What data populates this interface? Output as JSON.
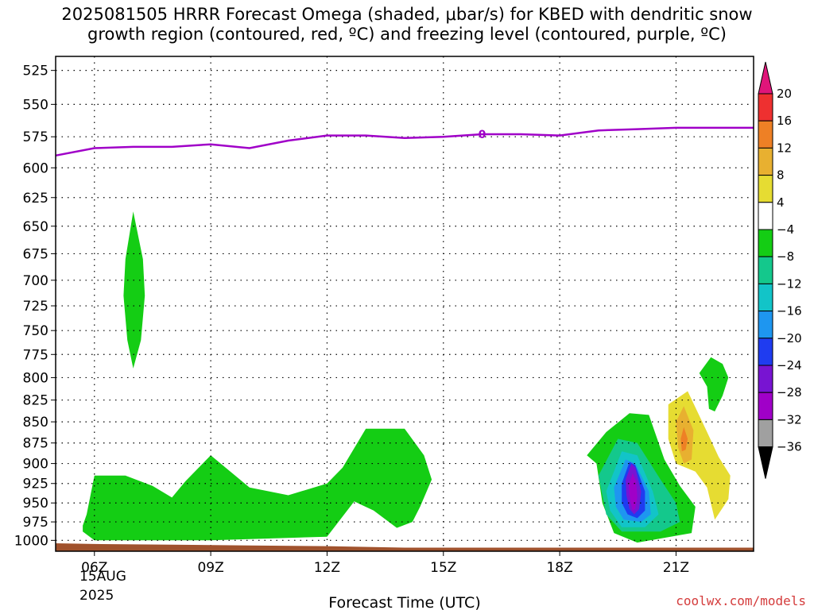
{
  "title_line1": "2025081505 HRRR Forecast Omega (shaded, μbar/s) for KBED with dendritic snow",
  "title_line2": "growth region (contoured, red, ºC) and freezing level (contoured, purple, ºC)",
  "credit": "coolwx.com/models",
  "chart_data": {
    "type": "time-height contour",
    "xlabel": "Forecast Time (UTC)",
    "x_ticks": [
      "06Z",
      "09Z",
      "12Z",
      "15Z",
      "18Z",
      "21Z"
    ],
    "x_tick_hours": [
      6,
      9,
      12,
      15,
      18,
      21
    ],
    "x_date_label": [
      "15AUG",
      "2025"
    ],
    "xlim": [
      5.0,
      23.0
    ],
    "ylabel": "",
    "y_ticks": [
      525,
      550,
      575,
      600,
      625,
      650,
      675,
      700,
      725,
      750,
      775,
      800,
      825,
      850,
      875,
      900,
      925,
      950,
      975,
      1000
    ],
    "y_ticks_label": [
      "525",
      "550",
      "575",
      "600",
      "625",
      "650",
      "675",
      "700",
      "725",
      "750",
      "775",
      "800",
      "825",
      "850",
      "875",
      "900",
      "925",
      "950",
      "975",
      "1000"
    ],
    "ylim": [
      1015,
      515
    ],
    "grid": true,
    "colorbar": {
      "labels": [
        "20",
        "16",
        "12",
        "8",
        "4",
        "−4",
        "−8",
        "−12",
        "−16",
        "−20",
        "−24",
        "−28",
        "−32",
        "−36"
      ],
      "label_values": [
        20,
        16,
        12,
        8,
        4,
        -4,
        -8,
        -12,
        -16,
        -20,
        -24,
        -28,
        -32,
        -36
      ],
      "bands": [
        {
          "range": "above 20",
          "color": "#e0157a"
        },
        {
          "range": "16 to 20",
          "color": "#ee3030"
        },
        {
          "range": "12 to 16",
          "color": "#ee8025"
        },
        {
          "range": "8 to 12",
          "color": "#e8b030"
        },
        {
          "range": "4 to 8",
          "color": "#e6dc32"
        },
        {
          "range": "-4 to 4",
          "color": "#ffffff"
        },
        {
          "range": "-8 to -4",
          "color": "#14cd14"
        },
        {
          "range": "-12 to -8",
          "color": "#14c88c"
        },
        {
          "range": "-16 to -12",
          "color": "#12c4c8"
        },
        {
          "range": "-20 to -16",
          "color": "#1e96f0"
        },
        {
          "range": "-24 to -20",
          "color": "#1f3cf0"
        },
        {
          "range": "-28 to -24",
          "color": "#7814d2"
        },
        {
          "range": "-32 to -28",
          "color": "#a000c8"
        },
        {
          "range": "-36 to -32",
          "color": "#a0a0a0"
        },
        {
          "range": "below -36",
          "color": "#000000"
        }
      ]
    },
    "freezing_level": {
      "color": "#a000c8",
      "label": "0",
      "points": [
        [
          5.0,
          590
        ],
        [
          6.0,
          584
        ],
        [
          7.0,
          583
        ],
        [
          8.0,
          583
        ],
        [
          9.0,
          581
        ],
        [
          10.0,
          584
        ],
        [
          11.0,
          578
        ],
        [
          12.0,
          574
        ],
        [
          13.0,
          574
        ],
        [
          14.0,
          576
        ],
        [
          15.0,
          575
        ],
        [
          16.0,
          573
        ],
        [
          17.0,
          573
        ],
        [
          18.0,
          574
        ],
        [
          19.0,
          570
        ],
        [
          20.0,
          569
        ],
        [
          21.0,
          568
        ],
        [
          22.0,
          568
        ],
        [
          23.0,
          568
        ]
      ]
    },
    "surface": {
      "color": "#a0522d",
      "points": [
        [
          5.0,
          1004
        ],
        [
          6.0,
          1005
        ],
        [
          8.0,
          1006
        ],
        [
          10.0,
          1007
        ],
        [
          12.0,
          1008
        ],
        [
          14.0,
          1010
        ],
        [
          16.0,
          1010
        ],
        [
          18.0,
          1010
        ],
        [
          20.0,
          1010
        ],
        [
          22.0,
          1010
        ],
        [
          23.0,
          1010
        ]
      ]
    },
    "omega_regions": [
      {
        "name": "ascent-0700z",
        "color": "#14cd14",
        "points": [
          [
            7.0,
            637
          ],
          [
            7.25,
            680
          ],
          [
            7.3,
            715
          ],
          [
            7.2,
            760
          ],
          [
            7.0,
            790
          ],
          [
            6.85,
            760
          ],
          [
            6.75,
            715
          ],
          [
            6.8,
            680
          ]
        ]
      },
      {
        "name": "ascent-low-morning",
        "color": "#14cd14",
        "points": [
          [
            5.7,
            980
          ],
          [
            5.8,
            965
          ],
          [
            6.0,
            915
          ],
          [
            6.8,
            915
          ],
          [
            7.5,
            928
          ],
          [
            8.0,
            943
          ],
          [
            8.35,
            922
          ],
          [
            9.0,
            890
          ],
          [
            10.0,
            930
          ],
          [
            11.0,
            940
          ],
          [
            12.0,
            925
          ],
          [
            12.4,
            905
          ],
          [
            13.0,
            858
          ],
          [
            14.0,
            858
          ],
          [
            14.5,
            890
          ],
          [
            14.7,
            920
          ],
          [
            14.4,
            955
          ],
          [
            14.2,
            975
          ],
          [
            13.8,
            983
          ],
          [
            13.2,
            960
          ],
          [
            12.7,
            948
          ],
          [
            12.0,
            995
          ],
          [
            9.0,
            1000
          ],
          [
            6.0,
            1000
          ],
          [
            5.7,
            988
          ]
        ]
      },
      {
        "name": "ascent-2000z-outer",
        "color": "#14cd14",
        "points": [
          [
            18.7,
            890
          ],
          [
            19.2,
            862
          ],
          [
            19.8,
            840
          ],
          [
            20.3,
            842
          ],
          [
            20.7,
            895
          ],
          [
            21.1,
            928
          ],
          [
            21.5,
            955
          ],
          [
            21.4,
            990
          ],
          [
            20.0,
            1003
          ],
          [
            19.4,
            990
          ],
          [
            19.1,
            950
          ],
          [
            18.95,
            900
          ]
        ]
      },
      {
        "name": "ascent-2000z-m8",
        "color": "#14c88c",
        "points": [
          [
            19.0,
            915
          ],
          [
            19.5,
            870
          ],
          [
            20.0,
            875
          ],
          [
            20.6,
            920
          ],
          [
            21.0,
            950
          ],
          [
            21.1,
            975
          ],
          [
            20.6,
            988
          ],
          [
            19.6,
            988
          ],
          [
            19.2,
            965
          ]
        ]
      },
      {
        "name": "ascent-2000z-m12",
        "color": "#12c4c8",
        "points": [
          [
            19.2,
            935
          ],
          [
            19.6,
            885
          ],
          [
            20.0,
            890
          ],
          [
            20.4,
            935
          ],
          [
            20.55,
            965
          ],
          [
            20.2,
            982
          ],
          [
            19.6,
            982
          ],
          [
            19.3,
            960
          ]
        ]
      },
      {
        "name": "ascent-2000z-m16",
        "color": "#1e96f0",
        "points": [
          [
            19.4,
            930
          ],
          [
            19.7,
            895
          ],
          [
            19.95,
            900
          ],
          [
            20.3,
            935
          ],
          [
            20.35,
            965
          ],
          [
            20.1,
            975
          ],
          [
            19.65,
            972
          ],
          [
            19.45,
            955
          ]
        ]
      },
      {
        "name": "ascent-2000z-m20",
        "color": "#1f3cf0",
        "points": [
          [
            19.6,
            925
          ],
          [
            19.8,
            898
          ],
          [
            19.95,
            902
          ],
          [
            20.2,
            935
          ],
          [
            20.2,
            960
          ],
          [
            20.0,
            970
          ],
          [
            19.75,
            965
          ],
          [
            19.6,
            950
          ]
        ]
      },
      {
        "name": "ascent-2000z-m24",
        "color": "#7814d2",
        "points": [
          [
            19.7,
            920
          ],
          [
            19.85,
            900
          ],
          [
            19.95,
            905
          ],
          [
            20.1,
            935
          ],
          [
            20.05,
            958
          ],
          [
            19.92,
            965
          ],
          [
            19.8,
            958
          ],
          [
            19.72,
            940
          ]
        ]
      },
      {
        "name": "ascent-2000z-m28",
        "color": "#a000c8",
        "points": [
          [
            19.78,
            928
          ],
          [
            19.88,
            912
          ],
          [
            19.97,
            922
          ],
          [
            20.0,
            943
          ],
          [
            19.95,
            958
          ],
          [
            19.88,
            960
          ],
          [
            19.82,
            948
          ]
        ]
      },
      {
        "name": "ascent-2200z",
        "color": "#14cd14",
        "points": [
          [
            21.6,
            795
          ],
          [
            21.9,
            778
          ],
          [
            22.2,
            785
          ],
          [
            22.35,
            800
          ],
          [
            22.2,
            820
          ],
          [
            22.0,
            838
          ],
          [
            21.85,
            835
          ],
          [
            21.8,
            810
          ]
        ]
      },
      {
        "name": "descent-2100z-p4",
        "color": "#e6dc32",
        "points": [
          [
            20.8,
            830
          ],
          [
            21.3,
            815
          ],
          [
            21.8,
            862
          ],
          [
            22.1,
            892
          ],
          [
            22.4,
            915
          ],
          [
            22.35,
            945
          ],
          [
            22.0,
            972
          ],
          [
            21.8,
            930
          ],
          [
            21.5,
            910
          ],
          [
            21.0,
            900
          ],
          [
            20.8,
            870
          ]
        ]
      },
      {
        "name": "descent-2100z-p8",
        "color": "#e8b030",
        "points": [
          [
            21.0,
            850
          ],
          [
            21.2,
            832
          ],
          [
            21.45,
            860
          ],
          [
            21.4,
            895
          ],
          [
            21.2,
            900
          ],
          [
            21.05,
            880
          ]
        ]
      },
      {
        "name": "descent-2100z-p12",
        "color": "#ee8025",
        "points": [
          [
            21.12,
            870
          ],
          [
            21.2,
            856
          ],
          [
            21.3,
            870
          ],
          [
            21.25,
            883
          ],
          [
            21.15,
            885
          ]
        ]
      }
    ]
  }
}
